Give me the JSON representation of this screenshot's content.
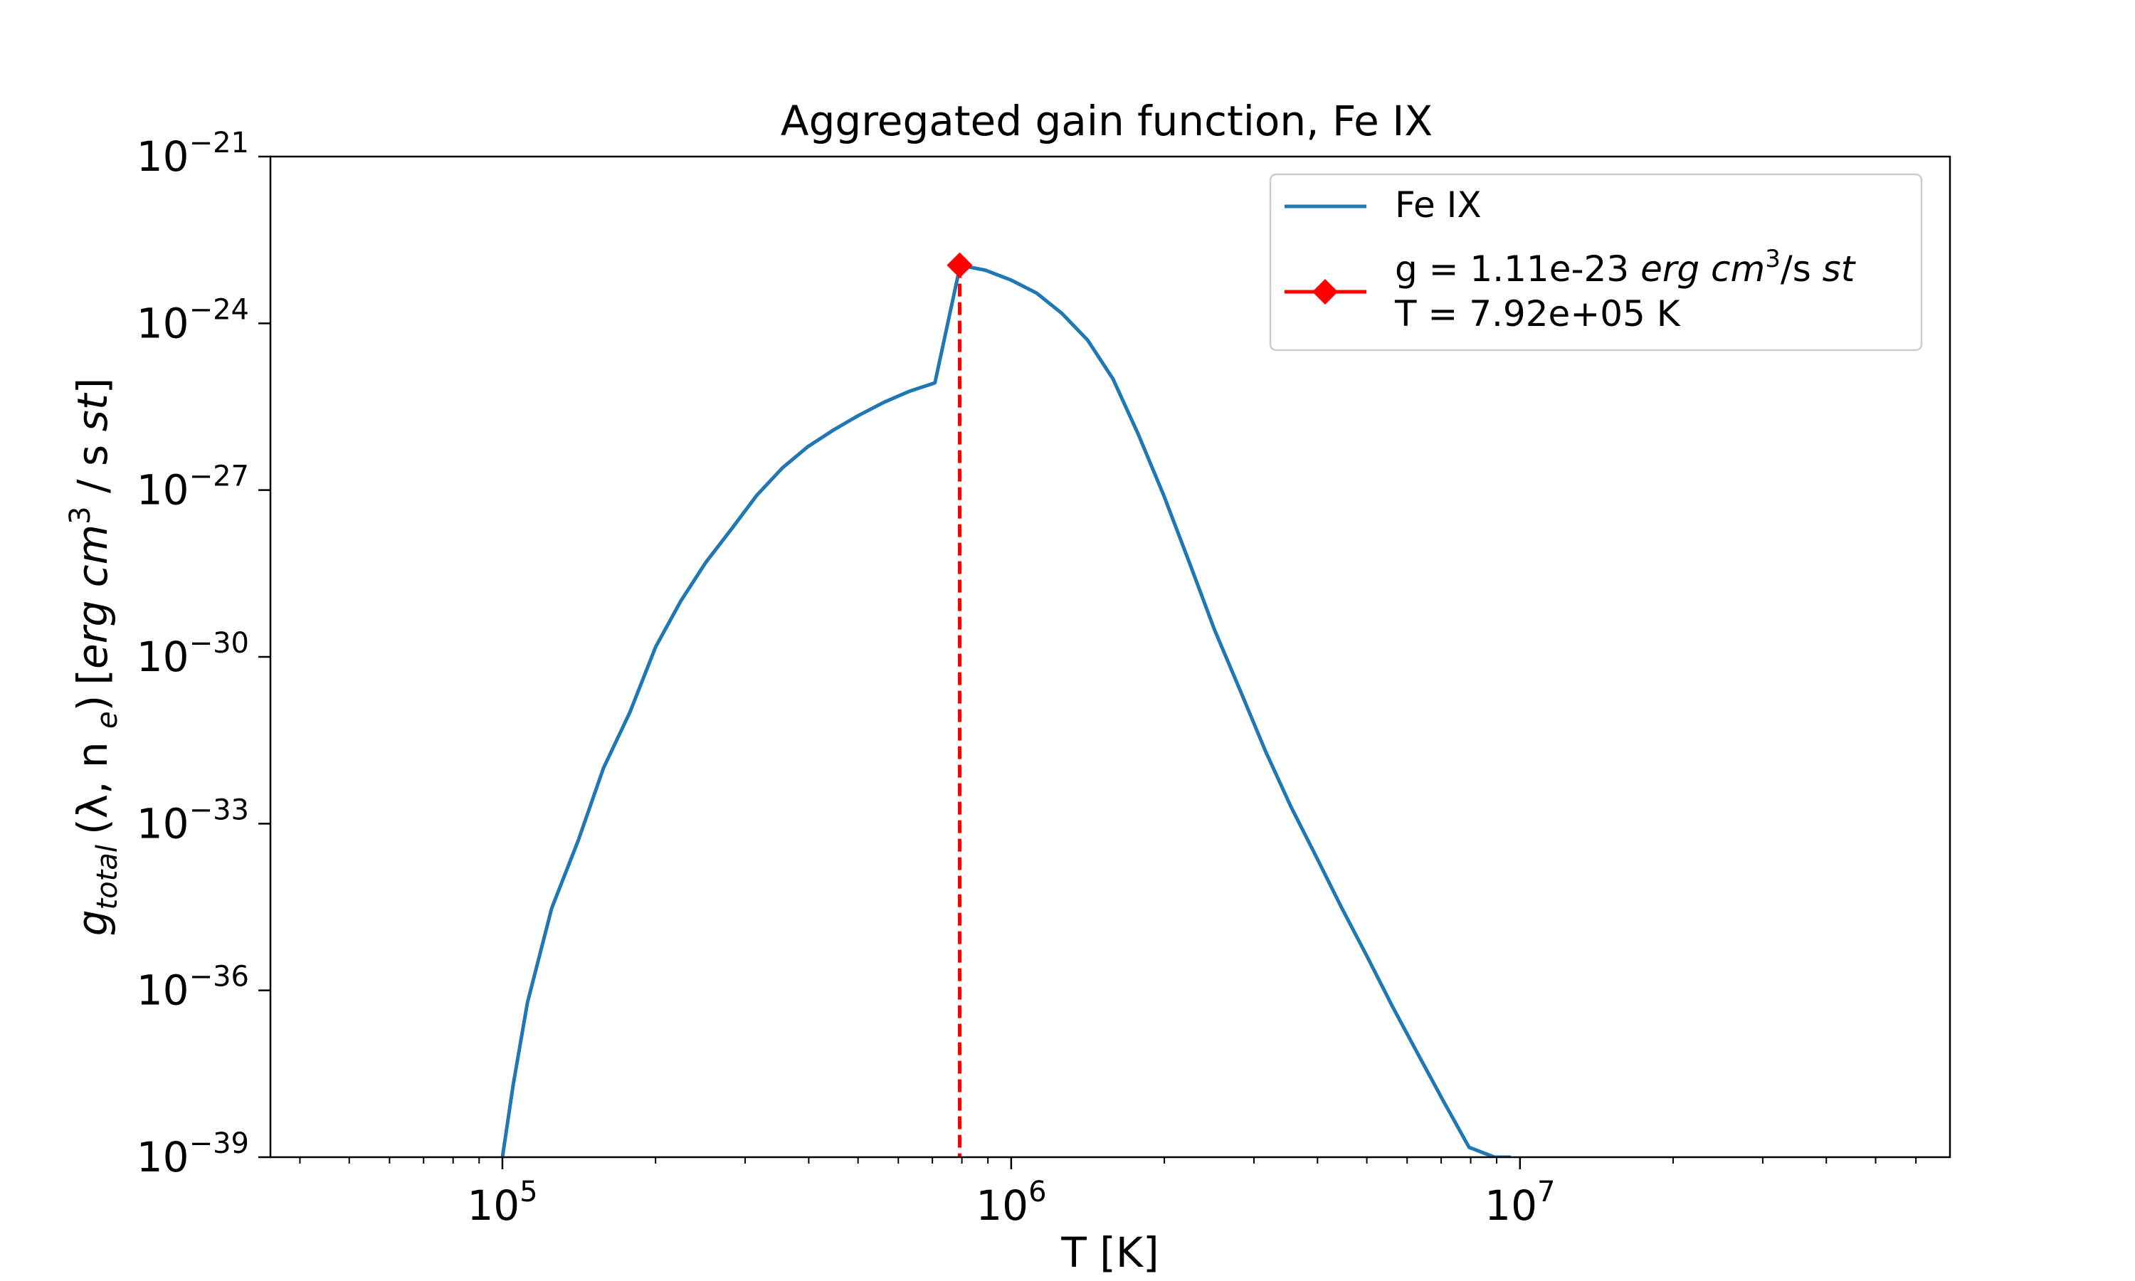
{
  "chart_data": {
    "type": "line",
    "title": "Aggregated gain function, Fe IX",
    "xlabel": "T [K]",
    "ylabel": {
      "base": "g",
      "sub": "total",
      "args": "(λ, n",
      "args_sub": "e",
      "args_close": ")",
      "unit_open": "[",
      "unit_erg_cm": "erg cm",
      "unit_exp": "3",
      "unit_slash_s": " / s  ",
      "unit_st": "st",
      "unit_close": "]"
    },
    "x_scale": "log",
    "y_scale": "log",
    "xlim": [
      35000,
      70000000
    ],
    "ylim": [
      1e-39,
      1e-21
    ],
    "x_ticks": [
      {
        "value": 100000,
        "base": "10",
        "exp": "5"
      },
      {
        "value": 1000000,
        "base": "10",
        "exp": "6"
      },
      {
        "value": 10000000,
        "base": "10",
        "exp": "7"
      }
    ],
    "y_ticks": [
      {
        "value": 1e-21,
        "base": "10",
        "exp": "−21"
      },
      {
        "value": 1e-24,
        "base": "10",
        "exp": "−24"
      },
      {
        "value": 1e-27,
        "base": "10",
        "exp": "−27"
      },
      {
        "value": 1e-30,
        "base": "10",
        "exp": "−30"
      },
      {
        "value": 1e-33,
        "base": "10",
        "exp": "−33"
      },
      {
        "value": 1e-36,
        "base": "10",
        "exp": "−36"
      },
      {
        "value": 1e-39,
        "base": "10",
        "exp": "−39"
      }
    ],
    "grid": false,
    "legend_position": "top-right",
    "series": [
      {
        "name": "Fe IX",
        "color": "#1f77b4",
        "x": [
          100000,
          105000,
          112000,
          125000,
          141000,
          158000,
          178000,
          200000,
          224000,
          251000,
          282000,
          316000,
          355000,
          398000,
          447000,
          501000,
          562000,
          631000,
          708000,
          794000,
          891000,
          1000000,
          1122000,
          1259000,
          1413000,
          1585000,
          1778000,
          1995000,
          2239000,
          2512000,
          2818000,
          3162000,
          3548000,
          3981000,
          4467000,
          5012000,
          5623000,
          6310000,
          7079000,
          7943000,
          8913000,
          9600000
        ],
        "y": [
          1e-39,
          2e-38,
          6e-37,
          3e-35,
          5e-34,
          1e-32,
          1e-31,
          1.5e-30,
          1e-29,
          5e-29,
          2e-28,
          8e-28,
          2.5e-27,
          6e-27,
          1.2e-26,
          2.2e-26,
          3.8e-26,
          6e-26,
          8.5e-26,
          1.11e-23,
          9e-24,
          6e-24,
          3.5e-24,
          1.5e-24,
          5e-25,
          1e-25,
          1e-26,
          8e-28,
          5e-29,
          3e-30,
          2.5e-31,
          2e-32,
          2e-33,
          2.5e-34,
          3e-35,
          4e-36,
          5e-37,
          7e-38,
          1e-38,
          1.5e-39,
          1e-39,
          1e-39
        ]
      },
      {
        "name": "g = 1.11e-23 erg cm³/s st\nT = 7.92e+05 K",
        "color": "#ff0000",
        "marker": "diamond",
        "line_style": "dashed",
        "x": [
          792000,
          792000
        ],
        "y": [
          1.11e-23,
          1e-39
        ]
      }
    ],
    "legend": {
      "entries": [
        {
          "label": "Fe IX"
        },
        {
          "label_g": "g = 1.11e-23 ",
          "label_erg_cm": "erg cm",
          "label_exp": "3",
          "label_slash": "/s ",
          "label_st": "st",
          "label_T": "T = 7.92e+05 K"
        }
      ]
    }
  }
}
